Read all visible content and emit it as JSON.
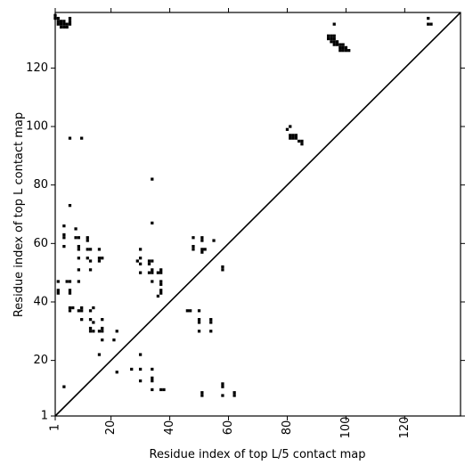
{
  "chart_data": {
    "type": "scatter",
    "xlabel": "Residue index of top L/5 contact map",
    "ylabel": "Residue index of top L contact map",
    "xlim": [
      1,
      139
    ],
    "ylim": [
      1,
      139
    ],
    "x_ticks": [
      1,
      20,
      40,
      60,
      80,
      100,
      120
    ],
    "y_ticks": [
      1,
      20,
      40,
      60,
      80,
      100,
      120
    ],
    "marker": "square",
    "diagonal_line": true,
    "colors": {
      "marker": "#000000",
      "axes": "#000000",
      "background": "#ffffff"
    },
    "series": [
      {
        "points": [
          [
            1,
            138
          ],
          [
            1,
            137
          ],
          [
            2,
            137
          ],
          [
            2,
            136
          ],
          [
            3,
            136
          ],
          [
            3,
            135
          ],
          [
            4,
            135
          ],
          [
            4,
            134
          ],
          [
            5,
            134
          ],
          [
            5,
            135
          ],
          [
            6,
            135
          ],
          [
            6,
            136
          ],
          [
            6,
            137
          ],
          [
            2,
            135
          ],
          [
            3,
            134
          ],
          [
            4,
            136
          ],
          [
            6,
            96
          ],
          [
            10,
            96
          ],
          [
            6,
            73
          ],
          [
            4,
            66
          ],
          [
            8,
            65
          ],
          [
            4,
            63
          ],
          [
            4,
            62
          ],
          [
            8,
            62
          ],
          [
            9,
            62
          ],
          [
            12,
            62
          ],
          [
            12,
            61
          ],
          [
            4,
            59
          ],
          [
            9,
            59
          ],
          [
            9,
            58
          ],
          [
            12,
            58
          ],
          [
            13,
            58
          ],
          [
            16,
            58
          ],
          [
            9,
            55
          ],
          [
            12,
            55
          ],
          [
            13,
            54
          ],
          [
            16,
            55
          ],
          [
            17,
            55
          ],
          [
            16,
            54
          ],
          [
            9,
            51
          ],
          [
            13,
            51
          ],
          [
            2,
            47
          ],
          [
            5,
            47
          ],
          [
            6,
            47
          ],
          [
            9,
            47
          ],
          [
            2,
            44
          ],
          [
            2,
            43
          ],
          [
            6,
            44
          ],
          [
            6,
            43
          ],
          [
            6,
            38
          ],
          [
            6,
            37
          ],
          [
            7,
            38
          ],
          [
            9,
            37
          ],
          [
            10,
            38
          ],
          [
            10,
            37
          ],
          [
            13,
            37
          ],
          [
            14,
            38
          ],
          [
            10,
            34
          ],
          [
            13,
            34
          ],
          [
            14,
            33
          ],
          [
            17,
            34
          ],
          [
            13,
            31
          ],
          [
            14,
            30
          ],
          [
            13,
            30
          ],
          [
            17,
            31
          ],
          [
            16,
            30
          ],
          [
            17,
            30
          ],
          [
            17,
            27
          ],
          [
            21,
            27
          ],
          [
            22,
            30
          ],
          [
            16,
            22
          ],
          [
            4,
            11
          ],
          [
            22,
            16
          ],
          [
            27,
            17
          ],
          [
            30,
            17
          ],
          [
            30,
            22
          ],
          [
            30,
            13
          ],
          [
            34,
            17
          ],
          [
            34,
            14
          ],
          [
            34,
            13
          ],
          [
            34,
            10
          ],
          [
            37,
            10
          ],
          [
            38,
            10
          ],
          [
            34,
            82
          ],
          [
            34,
            67
          ],
          [
            30,
            58
          ],
          [
            29,
            54
          ],
          [
            30,
            55
          ],
          [
            30,
            53
          ],
          [
            33,
            54
          ],
          [
            34,
            54
          ],
          [
            33,
            53
          ],
          [
            30,
            50
          ],
          [
            33,
            50
          ],
          [
            34,
            51
          ],
          [
            34,
            50
          ],
          [
            37,
            51
          ],
          [
            36,
            50
          ],
          [
            37,
            50
          ],
          [
            34,
            47
          ],
          [
            37,
            47
          ],
          [
            37,
            46
          ],
          [
            37,
            44
          ],
          [
            37,
            43
          ],
          [
            36,
            42
          ],
          [
            46,
            37
          ],
          [
            47,
            37
          ],
          [
            50,
            37
          ],
          [
            48,
            62
          ],
          [
            48,
            59
          ],
          [
            48,
            58
          ],
          [
            51,
            62
          ],
          [
            51,
            61
          ],
          [
            51,
            58
          ],
          [
            52,
            58
          ],
          [
            51,
            57
          ],
          [
            55,
            61
          ],
          [
            58,
            52
          ],
          [
            58,
            51
          ],
          [
            50,
            34
          ],
          [
            50,
            33
          ],
          [
            54,
            34
          ],
          [
            54,
            33
          ],
          [
            50,
            30
          ],
          [
            54,
            30
          ],
          [
            58,
            12
          ],
          [
            58,
            11
          ],
          [
            51,
            9
          ],
          [
            51,
            8
          ],
          [
            58,
            8
          ],
          [
            62,
            9
          ],
          [
            62,
            8
          ],
          [
            80,
            99
          ],
          [
            81,
            100
          ],
          [
            81,
            97
          ],
          [
            82,
            97
          ],
          [
            83,
            97
          ],
          [
            81,
            96
          ],
          [
            82,
            96
          ],
          [
            83,
            96
          ],
          [
            84,
            95
          ],
          [
            85,
            95
          ],
          [
            85,
            94
          ],
          [
            94,
            131
          ],
          [
            95,
            131
          ],
          [
            96,
            131
          ],
          [
            94,
            130
          ],
          [
            95,
            130
          ],
          [
            96,
            130
          ],
          [
            95,
            129
          ],
          [
            96,
            129
          ],
          [
            97,
            129
          ],
          [
            96,
            128
          ],
          [
            97,
            128
          ],
          [
            98,
            128
          ],
          [
            99,
            128
          ],
          [
            98,
            127
          ],
          [
            99,
            127
          ],
          [
            100,
            127
          ],
          [
            98,
            126
          ],
          [
            99,
            126
          ],
          [
            100,
            126
          ],
          [
            101,
            126
          ],
          [
            96,
            135
          ],
          [
            128,
            137
          ],
          [
            128,
            135
          ],
          [
            129,
            135
          ]
        ]
      }
    ]
  }
}
